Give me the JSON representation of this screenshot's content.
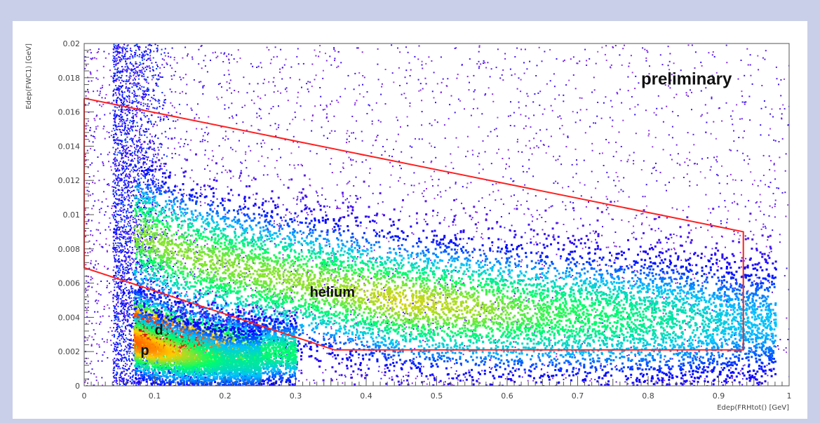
{
  "chart_data": {
    "type": "heatmap",
    "title": "",
    "xlabel": "Edep(FRHtot() [GeV]",
    "ylabel": "Edep(FWC1) [GeV]",
    "xlim": [
      0,
      1
    ],
    "ylim": [
      0,
      0.02
    ],
    "x_ticks": [
      {
        "value": 0,
        "label": "0"
      },
      {
        "value": 0.1,
        "label": "0.1"
      },
      {
        "value": 0.2,
        "label": "0.2"
      },
      {
        "value": 0.3,
        "label": "0.3"
      },
      {
        "value": 0.4,
        "label": "0.4"
      },
      {
        "value": 0.5,
        "label": "0.5"
      },
      {
        "value": 0.6,
        "label": "0.6"
      },
      {
        "value": 0.7,
        "label": "0.7"
      },
      {
        "value": 0.8,
        "label": "0.8"
      },
      {
        "value": 0.9,
        "label": "0.9"
      },
      {
        "value": 1,
        "label": "1"
      }
    ],
    "y_ticks": [
      {
        "value": 0,
        "label": "0"
      },
      {
        "value": 0.002,
        "label": "0.002"
      },
      {
        "value": 0.004,
        "label": "0.004"
      },
      {
        "value": 0.006,
        "label": "0.006"
      },
      {
        "value": 0.008,
        "label": "0.008"
      },
      {
        "value": 0.01,
        "label": "0.01"
      },
      {
        "value": 0.012,
        "label": "0.012"
      },
      {
        "value": 0.014,
        "label": "0.014"
      },
      {
        "value": 0.016,
        "label": "0.016"
      },
      {
        "value": 0.018,
        "label": "0.018"
      },
      {
        "value": 0.02,
        "label": "0.02"
      }
    ],
    "grid": false,
    "colormap": [
      "#ffffff",
      "#8a2be2",
      "#0000ff",
      "#00bfff",
      "#00ff66",
      "#ffcc00",
      "#ff3300",
      "#aa0000"
    ],
    "bands": [
      {
        "label": "helium",
        "points": [
          {
            "x": 0.07,
            "y": 0.009,
            "i": 0.55
          },
          {
            "x": 0.15,
            "y": 0.0076,
            "i": 0.55
          },
          {
            "x": 0.25,
            "y": 0.0066,
            "i": 0.55
          },
          {
            "x": 0.35,
            "y": 0.0058,
            "i": 0.56
          },
          {
            "x": 0.45,
            "y": 0.005,
            "i": 0.6
          },
          {
            "x": 0.55,
            "y": 0.0046,
            "i": 0.57
          },
          {
            "x": 0.65,
            "y": 0.0043,
            "i": 0.5
          },
          {
            "x": 0.75,
            "y": 0.0041,
            "i": 0.45
          },
          {
            "x": 0.85,
            "y": 0.0039,
            "i": 0.38
          },
          {
            "x": 0.93,
            "y": 0.0038,
            "i": 0.3
          }
        ]
      },
      {
        "label": "d",
        "points": [
          {
            "x": 0.07,
            "y": 0.0036,
            "i": 0.9
          },
          {
            "x": 0.11,
            "y": 0.003,
            "i": 0.95
          },
          {
            "x": 0.15,
            "y": 0.0026,
            "i": 0.85
          },
          {
            "x": 0.2,
            "y": 0.0023,
            "i": 0.65
          },
          {
            "x": 0.25,
            "y": 0.002,
            "i": 0.45
          }
        ]
      },
      {
        "label": "p",
        "points": [
          {
            "x": 0.07,
            "y": 0.0026,
            "i": 0.75
          },
          {
            "x": 0.1,
            "y": 0.0022,
            "i": 0.7
          },
          {
            "x": 0.15,
            "y": 0.0018,
            "i": 0.55
          },
          {
            "x": 0.2,
            "y": 0.0015,
            "i": 0.4
          }
        ]
      }
    ],
    "cut_polygon": {
      "color": "#ff2020",
      "vertices": [
        {
          "x": 0.0,
          "y": 0.0168
        },
        {
          "x": 0.935,
          "y": 0.009
        },
        {
          "x": 0.935,
          "y": 0.0021
        },
        {
          "x": 0.355,
          "y": 0.0021
        },
        {
          "x": 0.0,
          "y": 0.0069
        }
      ]
    },
    "annotations": [
      {
        "text": "preliminary",
        "x": 0.79,
        "y": 0.0176,
        "size": 24
      },
      {
        "text": "helium",
        "x": 0.32,
        "y": 0.0052,
        "size": 20
      },
      {
        "text": "d",
        "x": 0.1,
        "y": 0.003,
        "size": 20
      },
      {
        "text": "p",
        "x": 0.08,
        "y": 0.0018,
        "size": 20
      }
    ]
  }
}
